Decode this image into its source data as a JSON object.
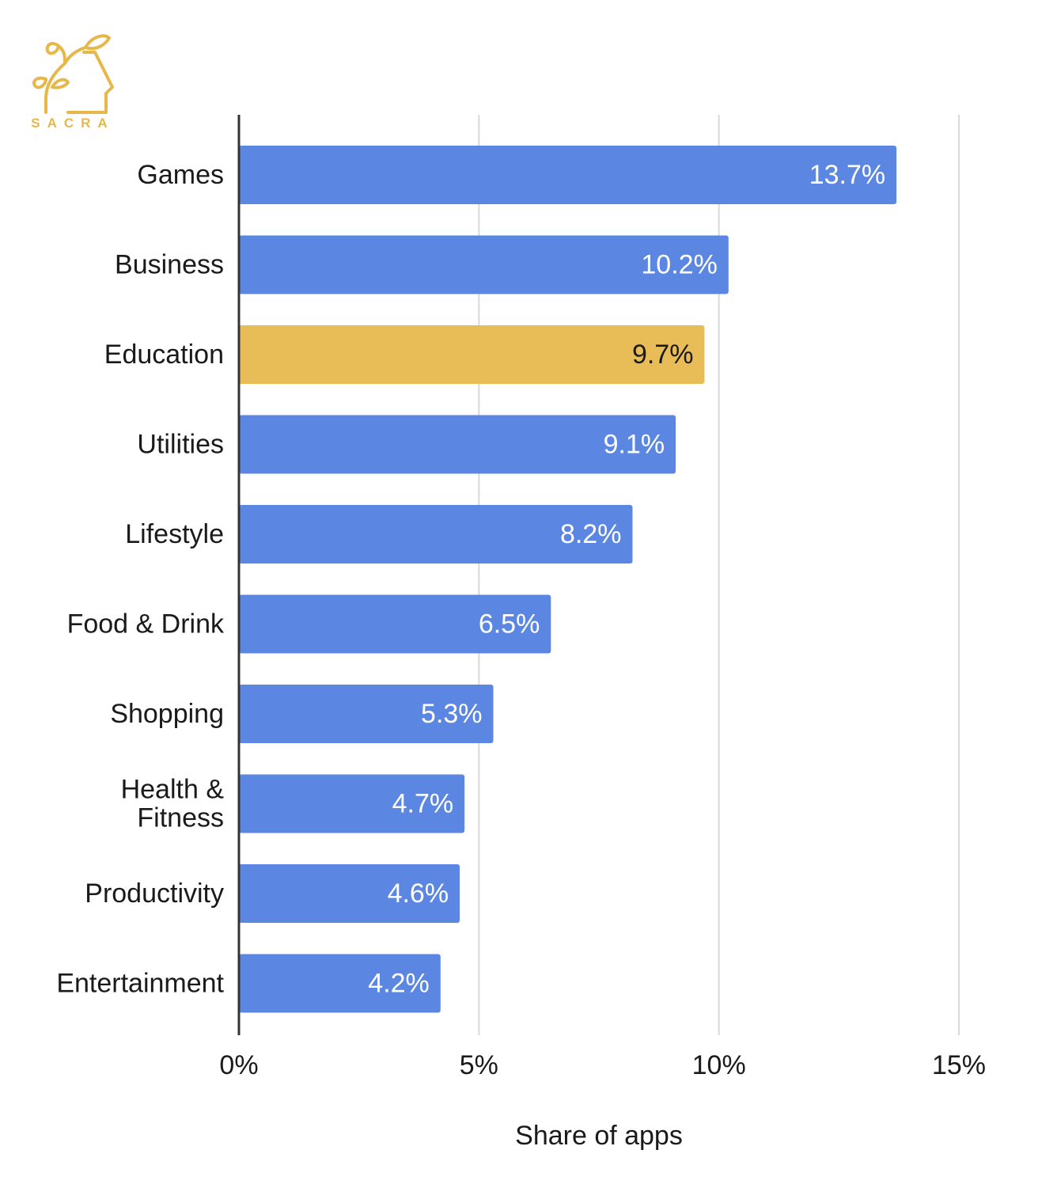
{
  "brand": {
    "name": "SACRA",
    "color": "#e6b84a"
  },
  "chart_data": {
    "type": "bar",
    "orientation": "horizontal",
    "categories": [
      "Games",
      "Business",
      "Education",
      "Utilities",
      "Lifestyle",
      "Food & Drink",
      "Shopping",
      "Health & Fitness",
      "Productivity",
      "Entertainment"
    ],
    "category_lines": [
      [
        "Games"
      ],
      [
        "Business"
      ],
      [
        "Education"
      ],
      [
        "Utilities"
      ],
      [
        "Lifestyle"
      ],
      [
        "Food & Drink"
      ],
      [
        "Shopping"
      ],
      [
        "Health &",
        "Fitness"
      ],
      [
        "Productivity"
      ],
      [
        "Entertainment"
      ]
    ],
    "values": [
      13.7,
      10.2,
      9.7,
      9.1,
      8.2,
      6.5,
      5.3,
      4.7,
      4.6,
      4.2
    ],
    "data_labels": [
      "13.7%",
      "10.2%",
      "9.7%",
      "9.1%",
      "8.2%",
      "6.5%",
      "5.3%",
      "4.7%",
      "4.6%",
      "4.2%"
    ],
    "highlight_category": "Education",
    "colors": {
      "bar": "#5b87e3",
      "highlight": "#e8bd58",
      "label_on_bar": "#ffffff",
      "label_on_highlight": "#1a1a1a",
      "gridline": "#d9d9d9",
      "axis": "#333333"
    },
    "xlabel": "Share of apps",
    "ylabel": "",
    "xlim": [
      0,
      15
    ],
    "xticks": [
      0,
      5,
      10,
      15
    ],
    "xtick_labels": [
      "0%",
      "5%",
      "10%",
      "15%"
    ],
    "grid": true,
    "legend": "none"
  }
}
